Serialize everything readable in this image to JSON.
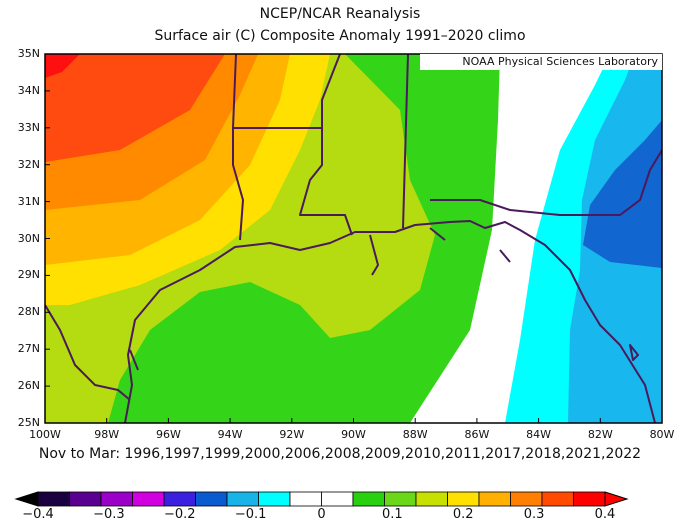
{
  "header": {
    "title": "NCEP/NCAR Reanalysis",
    "subtitle": "Surface air (C) Composite Anomaly 1991–2020 climo"
  },
  "map": {
    "credit": "NOAA Physical Sciences Laboratory",
    "lat_labels": [
      "35N",
      "34N",
      "33N",
      "32N",
      "31N",
      "30N",
      "29N",
      "28N",
      "27N",
      "26N",
      "25N"
    ],
    "lon_labels": [
      "100W",
      "98W",
      "96W",
      "94W",
      "92W",
      "90W",
      "88W",
      "86W",
      "84W",
      "82W",
      "80W"
    ],
    "extent": {
      "lon_min": -100,
      "lon_max": -80,
      "lat_min": 25,
      "lat_max": 35
    },
    "composite_caption": "Nov to Mar: 1996,1997,1999,2000,2006,2008,2009,2010,2011,2017,2018,2021,2022",
    "land_water_line_color": "#4a1a5a"
  },
  "colorbar": {
    "labels": [
      "−0.4",
      "−0.3",
      "−0.2",
      "−0.1",
      "0",
      "0.1",
      "0.2",
      "0.3",
      "0.4"
    ],
    "label_values": [
      -0.4,
      -0.3,
      -0.2,
      -0.1,
      0,
      0.1,
      0.2,
      0.3,
      0.4
    ],
    "colors": [
      "#1a0040",
      "#5a0090",
      "#9a00c8",
      "#d000e0",
      "#3c20e0",
      "#0a5ad0",
      "#18b4e8",
      "#00ffff",
      "#ffffff",
      "#ffffff",
      "#28d010",
      "#6ad818",
      "#c8e000",
      "#ffe000",
      "#ffb000",
      "#ff8000",
      "#ff4a00",
      "#ff0000"
    ]
  }
}
